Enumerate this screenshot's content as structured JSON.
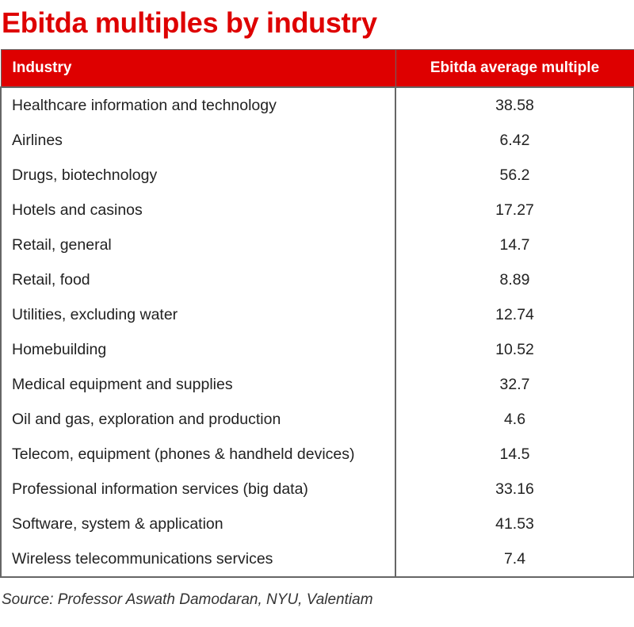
{
  "title": "Ebitda multiples by industry",
  "source": "Source: Professor Aswath Damodaran, NYU, Valentiam",
  "colors": {
    "accent": "#de0000",
    "border": "#666666",
    "text": "#222222"
  },
  "chart_data": {
    "type": "table",
    "title": "Ebitda multiples by industry",
    "columns": [
      "Industry",
      "Ebitda average multiple"
    ],
    "rows": [
      [
        "Healthcare information and technology",
        "38.58"
      ],
      [
        "Airlines",
        "6.42"
      ],
      [
        "Drugs, biotechnology",
        "56.2"
      ],
      [
        "Hotels and casinos",
        "17.27"
      ],
      [
        "Retail, general",
        "14.7"
      ],
      [
        "Retail, food",
        "8.89"
      ],
      [
        "Utilities, excluding water",
        "12.74"
      ],
      [
        "Homebuilding",
        "10.52"
      ],
      [
        "Medical equipment and supplies",
        "32.7"
      ],
      [
        "Oil and gas, exploration and production",
        "4.6"
      ],
      [
        "Telecom, equipment (phones & handheld devices)",
        "14.5"
      ],
      [
        "Professional information services (big data)",
        "33.16"
      ],
      [
        "Software, system & application",
        "41.53"
      ],
      [
        "Wireless telecommunications services",
        "7.4"
      ]
    ]
  }
}
